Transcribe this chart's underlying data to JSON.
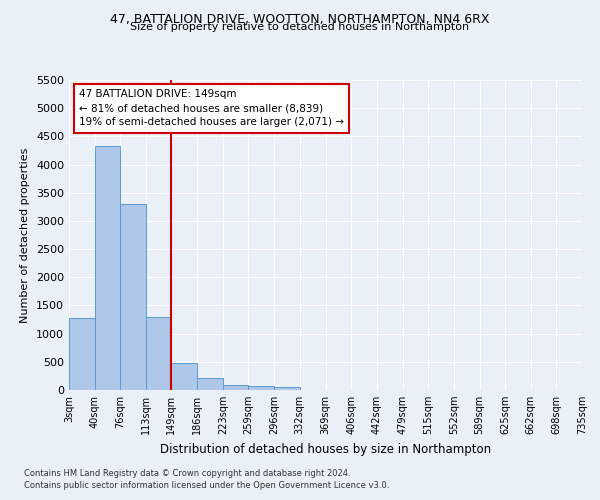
{
  "title1": "47, BATTALION DRIVE, WOOTTON, NORTHAMPTON, NN4 6RX",
  "title2": "Size of property relative to detached houses in Northampton",
  "xlabel": "Distribution of detached houses by size in Northampton",
  "ylabel": "Number of detached properties",
  "footer1": "Contains HM Land Registry data © Crown copyright and database right 2024.",
  "footer2": "Contains public sector information licensed under the Open Government Licence v3.0.",
  "annotation_line1": "47 BATTALION DRIVE: 149sqm",
  "annotation_line2": "← 81% of detached houses are smaller (8,839)",
  "annotation_line3": "19% of semi-detached houses are larger (2,071) →",
  "subject_value": 149,
  "bar_edges": [
    3,
    40,
    76,
    113,
    149,
    186,
    223,
    259,
    296,
    332,
    369,
    406,
    442,
    479,
    515,
    552,
    589,
    625,
    662,
    698,
    735
  ],
  "bar_heights": [
    1270,
    4330,
    3300,
    1290,
    480,
    210,
    90,
    65,
    60,
    0,
    0,
    0,
    0,
    0,
    0,
    0,
    0,
    0,
    0,
    0
  ],
  "bar_color": "#aec6e8",
  "bar_edgecolor": "#5b9bd5",
  "vline_color": "#cc0000",
  "background_color": "#eaf0f8",
  "grid_color": "#ffffff",
  "ylim": [
    0,
    5500
  ],
  "yticks": [
    0,
    500,
    1000,
    1500,
    2000,
    2500,
    3000,
    3500,
    4000,
    4500,
    5000,
    5500
  ]
}
